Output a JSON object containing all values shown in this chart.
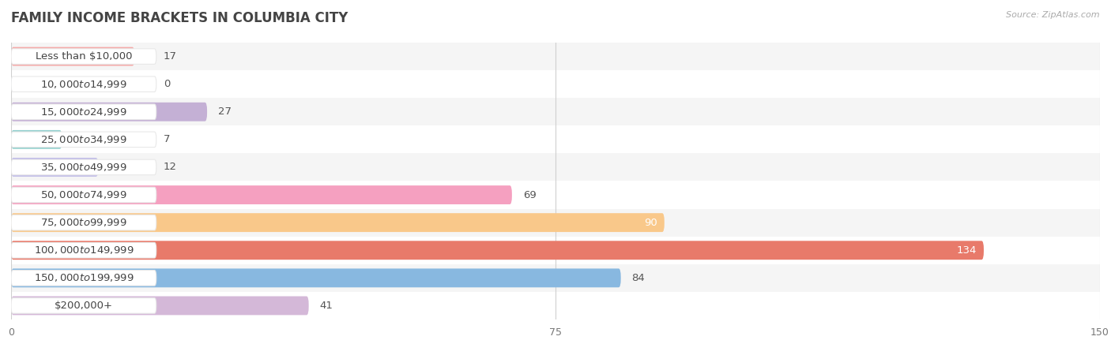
{
  "title": "FAMILY INCOME BRACKETS IN COLUMBIA CITY",
  "source": "Source: ZipAtlas.com",
  "categories": [
    "Less than $10,000",
    "$10,000 to $14,999",
    "$15,000 to $24,999",
    "$25,000 to $34,999",
    "$35,000 to $49,999",
    "$50,000 to $74,999",
    "$75,000 to $99,999",
    "$100,000 to $149,999",
    "$150,000 to $199,999",
    "$200,000+"
  ],
  "values": [
    17,
    0,
    27,
    7,
    12,
    69,
    90,
    134,
    84,
    41
  ],
  "bar_colors": [
    "#f4a9a8",
    "#b8cce4",
    "#c4b0d5",
    "#92d0ce",
    "#c0bce8",
    "#f5a0c0",
    "#f9c88a",
    "#e87a6a",
    "#88b8e0",
    "#d4b8d8"
  ],
  "xlim": [
    0,
    150
  ],
  "xticks": [
    0,
    75,
    150
  ],
  "background_color": "#ffffff",
  "title_fontsize": 12,
  "label_fontsize": 9.5,
  "value_fontsize": 9.5,
  "bar_height": 0.68,
  "row_bg_colors": [
    "#f5f5f5",
    "#ffffff"
  ],
  "grid_color": "#d0d0d0",
  "label_pill_color": "#ffffff",
  "label_pill_edge": "#e8e8e8",
  "label_text_color": "#444444",
  "value_text_color": "#555555"
}
